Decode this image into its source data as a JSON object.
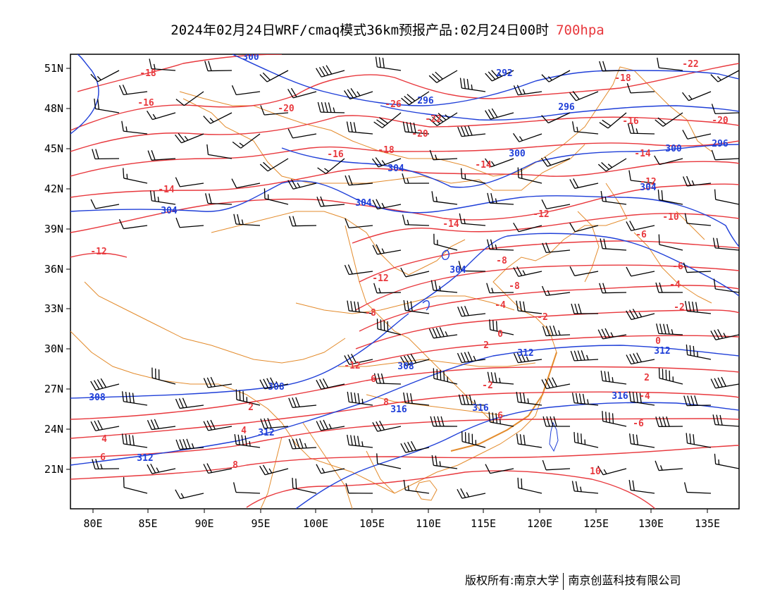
{
  "title": {
    "main": "2024年02月24日WRF/cmaq模式36km预报产品:02月24日00时",
    "level": "700hpa"
  },
  "footer": {
    "left": "版权所有:南京大学",
    "right": "南京创蓝科技有限公司"
  },
  "colors": {
    "temperature": "#e8383d",
    "height": "#1f3fd8",
    "border": "#e38b2c",
    "wind": "#000000",
    "title_level": "#e8383d"
  },
  "axes": {
    "lon_labels": [
      "80E",
      "85E",
      "90E",
      "95E",
      "100E",
      "105E",
      "110E",
      "115E",
      "120E",
      "125E",
      "130E",
      "135E"
    ],
    "lat_labels": [
      "51N",
      "48N",
      "45N",
      "42N",
      "39N",
      "36N",
      "33N",
      "30N",
      "27N",
      "24N",
      "21N"
    ]
  },
  "temperature_labels": [
    "-18",
    "-16",
    "-20",
    "-26",
    "-22",
    "-20",
    "-18",
    "-16",
    "-14",
    "-14",
    "-12",
    "-14",
    "-12",
    "-10",
    "-8",
    "-8",
    "-6",
    "-4",
    "-2",
    "0",
    "2",
    "2",
    "4",
    "6",
    "8",
    "10",
    "-12",
    "-18",
    "-22",
    "-20",
    "-16",
    "-14",
    "-12",
    "-6",
    "-4",
    "-2",
    "0",
    "2",
    "4",
    "6",
    "8",
    "-2",
    "-4",
    "6",
    "-8",
    "-12",
    "-6"
  ],
  "height_labels": [
    "300",
    "292",
    "296",
    "296",
    "300",
    "304",
    "304",
    "304",
    "308",
    "308",
    "312",
    "312",
    "316",
    "312",
    "316",
    "304",
    "300",
    "304",
    "308",
    "312",
    "316",
    "296"
  ]
}
